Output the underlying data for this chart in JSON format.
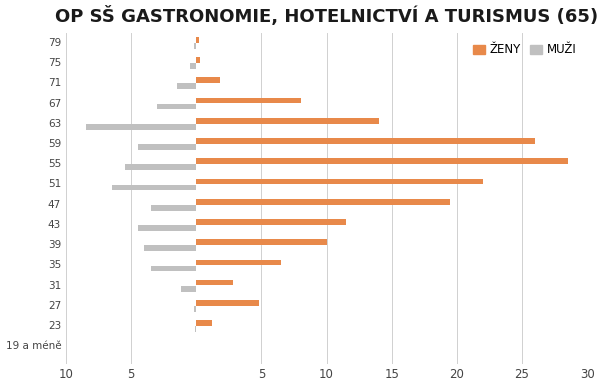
{
  "title": "OP SŠ GASTRONOMIE, HOTELNICTVÍ A TURISMUS (65)",
  "title_fontsize": 13,
  "background_color": "#ffffff",
  "zeny_color": "#E8894A",
  "muzi_color": "#C0C0C0",
  "legend_zeny": "ŽENY",
  "legend_muzi": "MUŽI",
  "age_labels": [
    "19 a méně",
    "23",
    "27",
    "31",
    "35",
    "39",
    "43",
    "47",
    "51",
    "55",
    "59",
    "63",
    "67",
    "71",
    "75",
    "79"
  ],
  "zeny": [
    0.0,
    1.2,
    4.8,
    2.8,
    6.5,
    10.0,
    11.5,
    19.5,
    22.0,
    28.5,
    26.0,
    14.0,
    8.0,
    1.8,
    0.3,
    0.2
  ],
  "muzi": [
    0.0,
    0.1,
    0.2,
    1.2,
    3.5,
    4.0,
    4.5,
    3.5,
    6.5,
    5.5,
    4.5,
    8.5,
    3.0,
    1.5,
    0.5,
    0.2
  ],
  "xlim_left": -10,
  "xlim_right": 30,
  "xticks": [
    -10,
    -5,
    5,
    10,
    15,
    20,
    25,
    30
  ],
  "xticklabels": [
    "10",
    "5",
    "5",
    "10",
    "15",
    "20",
    "25",
    "30"
  ],
  "bar_height": 0.28,
  "bar_gap": 0.3
}
